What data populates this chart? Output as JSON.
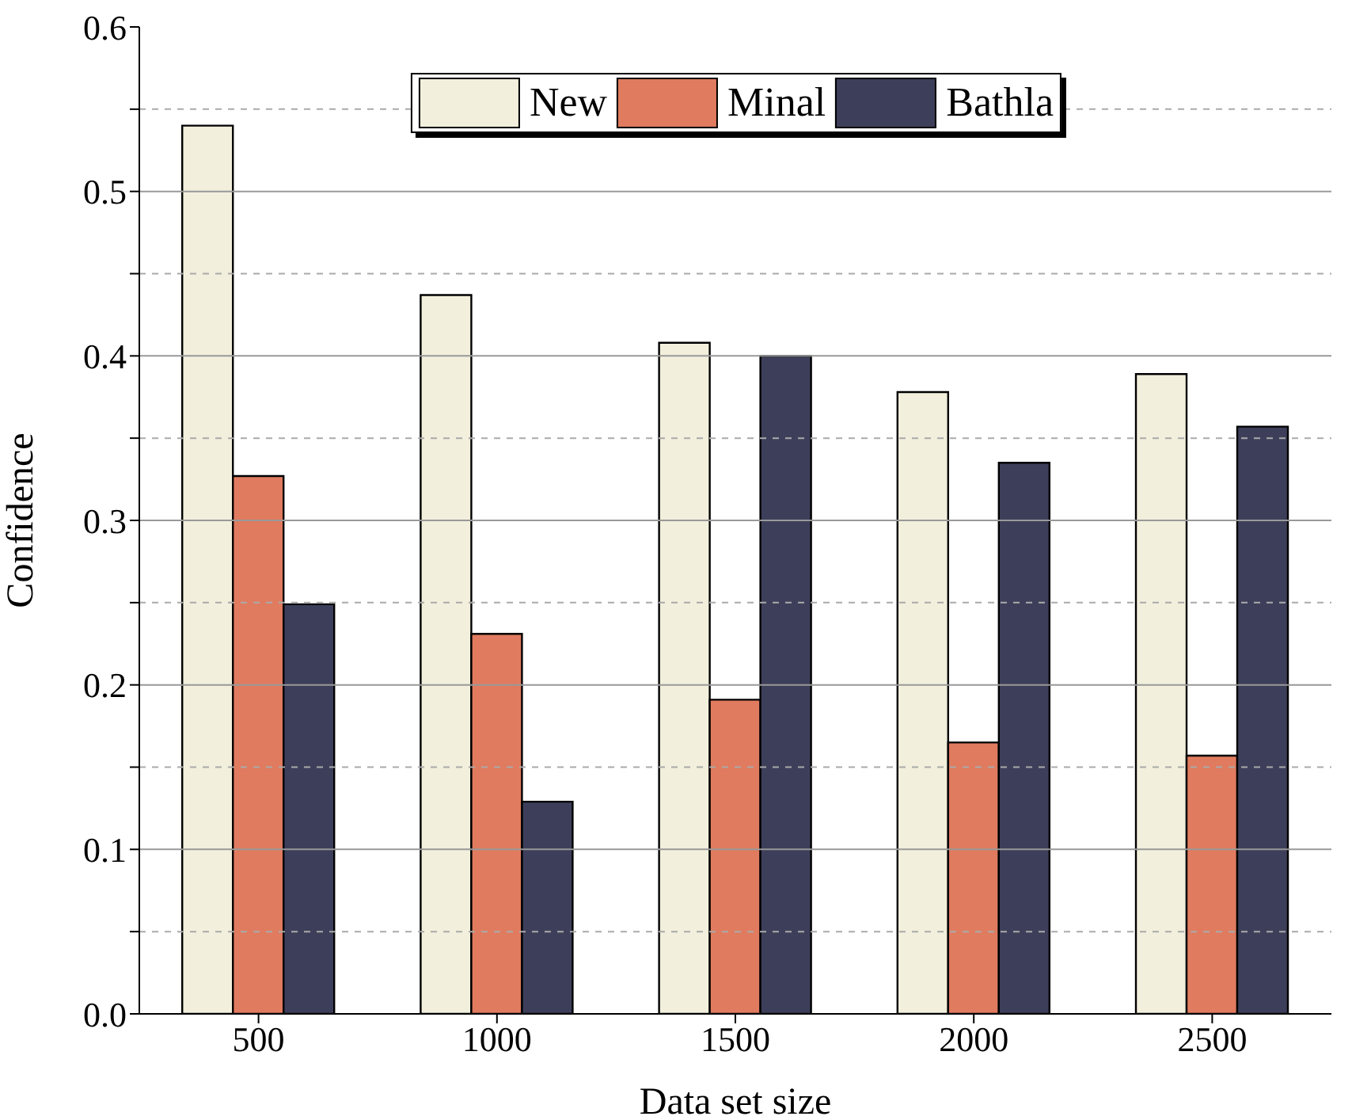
{
  "chart_data": {
    "type": "bar",
    "xlabel": "Data set size",
    "ylabel": "Confidence",
    "categories": [
      "500",
      "1000",
      "1500",
      "2000",
      "2500"
    ],
    "series": [
      {
        "name": "New",
        "color": "#f2efdc",
        "values": [
          0.54,
          0.437,
          0.408,
          0.378,
          0.389
        ]
      },
      {
        "name": "Minal",
        "color": "#e07b5f",
        "values": [
          0.327,
          0.231,
          0.191,
          0.165,
          0.157
        ]
      },
      {
        "name": "Bathla",
        "color": "#3d3f5a",
        "values": [
          0.249,
          0.129,
          0.4,
          0.335,
          0.357
        ]
      }
    ],
    "ylim": [
      0,
      0.6
    ],
    "yticks": [
      {
        "value": 0,
        "label": "0.0"
      },
      {
        "value": 0.05,
        "label": null
      },
      {
        "value": 0.1,
        "label": "0.1"
      },
      {
        "value": 0.15,
        "label": null
      },
      {
        "value": 0.2,
        "label": "0.2"
      },
      {
        "value": 0.25,
        "label": null
      },
      {
        "value": 0.3,
        "label": "0.3"
      },
      {
        "value": 0.35,
        "label": null
      },
      {
        "value": 0.4,
        "label": "0.4"
      },
      {
        "value": 0.45,
        "label": null
      },
      {
        "value": 0.5,
        "label": "0.5"
      },
      {
        "value": 0.55,
        "label": null
      },
      {
        "value": 0.6,
        "label": "0.6"
      }
    ],
    "grid": "y",
    "legend": "top"
  }
}
